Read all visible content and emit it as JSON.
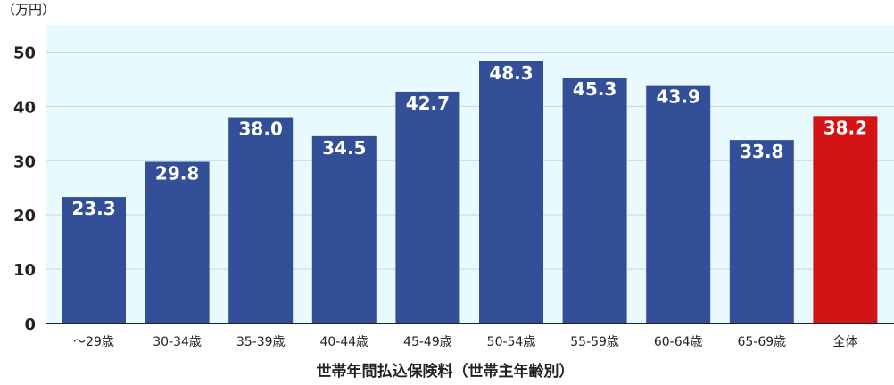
{
  "chart_data": {
    "type": "bar",
    "title": "",
    "ylabel_unit": "（万円）",
    "xlabel": "世帯年間払込保険料（世帯主年齢別）",
    "ylim": [
      0,
      55
    ],
    "yticks": [
      "0",
      "10",
      "20",
      "30",
      "40",
      "50"
    ],
    "categories": [
      "～29歳",
      "30-34歳",
      "35-39歳",
      "40-44歳",
      "45-49歳",
      "50-54歳",
      "55-59歳",
      "60-64歳",
      "65-69歳",
      "全体"
    ],
    "values": [
      23.3,
      29.8,
      38.0,
      34.5,
      42.7,
      48.3,
      45.3,
      43.9,
      33.8,
      38.2
    ],
    "value_labels": [
      "23.3",
      "29.8",
      "38.0",
      "34.5",
      "42.7",
      "48.3",
      "45.3",
      "43.9",
      "33.8",
      "38.2"
    ],
    "grid": true,
    "colors": {
      "bar": "#324f98",
      "highlight": "#d21414",
      "plot_background": "#e8fafd",
      "grid": "#c9d9dd"
    },
    "highlight_index": 9
  }
}
